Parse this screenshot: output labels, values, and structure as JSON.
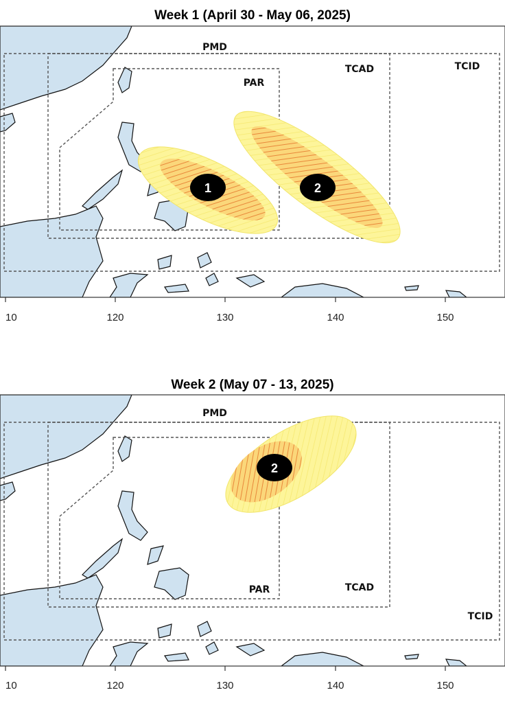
{
  "maps": [
    {
      "title": "Week 1 (April 30 - May 06, 2025)",
      "region_labels": [
        "PMD",
        "PAR",
        "TCAD",
        "TCID"
      ],
      "areas": [
        {
          "label": "1"
        },
        {
          "label": "2"
        }
      ],
      "x_ticks": [
        "10",
        "120",
        "130",
        "140",
        "150"
      ]
    },
    {
      "title": "Week 2 (May 07 - 13, 2025)",
      "region_labels": [
        "PMD",
        "PAR",
        "TCAD",
        "TCID"
      ],
      "areas": [
        {
          "label": "2"
        }
      ],
      "x_ticks": [
        "10",
        "120",
        "130",
        "140",
        "150"
      ]
    }
  ]
}
